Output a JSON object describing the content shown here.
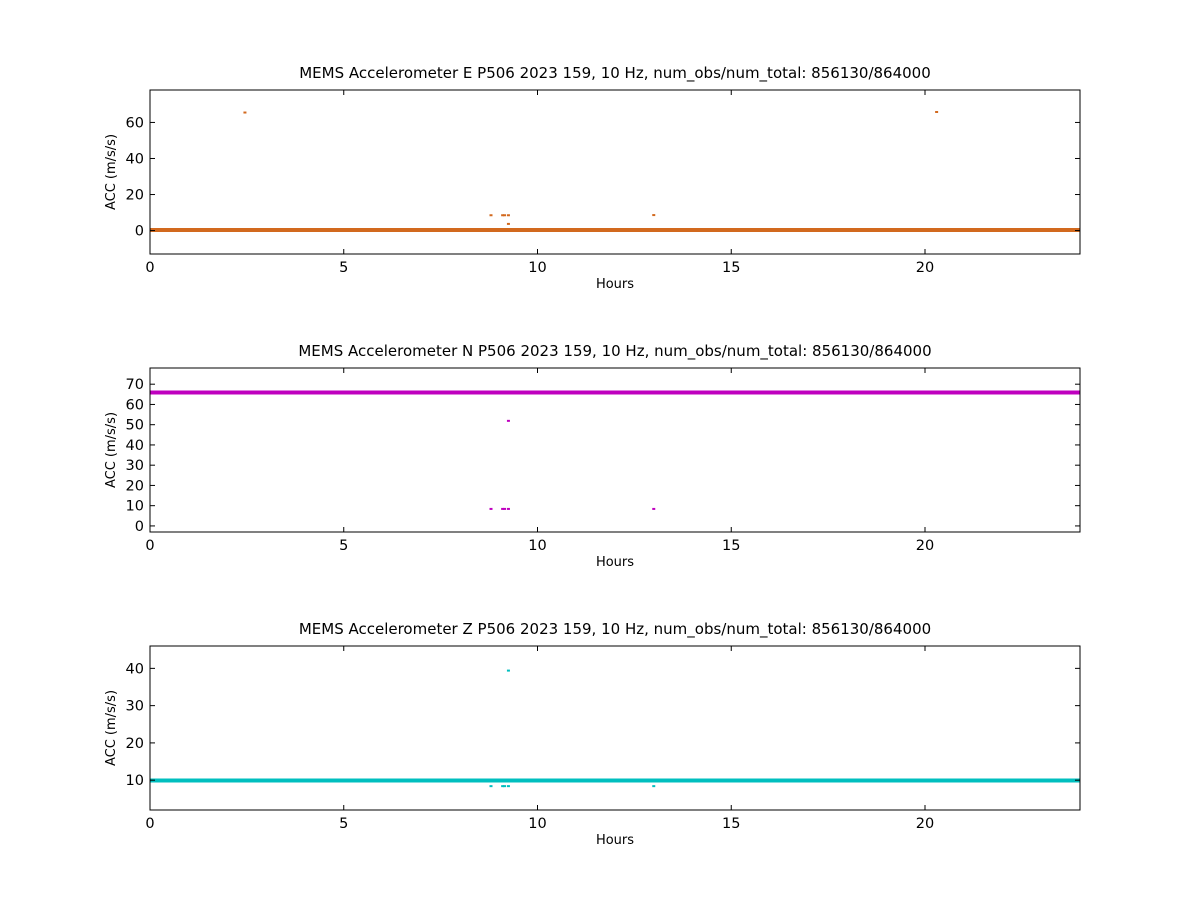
{
  "chart_data": [
    {
      "type": "scatter",
      "title": "MEMS Accelerometer E P506 2023 159, 10 Hz, num_obs/num_total: 856130/864000",
      "xlabel": "Hours",
      "ylabel": "ACC (m/s/s)",
      "xlim": [
        0,
        24
      ],
      "ylim": [
        -13,
        78
      ],
      "xticks": [
        0,
        5,
        10,
        15,
        20
      ],
      "yticks": [
        0,
        20,
        40,
        60
      ],
      "grid": false,
      "legend": "none",
      "color": "#d2691e",
      "baseline": {
        "y": 0.3,
        "x": [
          0,
          24
        ]
      },
      "series": [
        {
          "values": [
            [
              2.45,
              65.5
            ],
            [
              20.3,
              65.8
            ],
            [
              8.8,
              8.5
            ],
            [
              9.1,
              8.5
            ],
            [
              9.15,
              8.5
            ],
            [
              9.25,
              8.5
            ],
            [
              9.25,
              3.7
            ],
            [
              13.0,
              8.6
            ]
          ]
        }
      ]
    },
    {
      "type": "scatter",
      "title": "MEMS Accelerometer N P506 2023 159, 10 Hz, num_obs/num_total: 856130/864000",
      "xlabel": "Hours",
      "ylabel": "ACC (m/s/s)",
      "xlim": [
        0,
        24
      ],
      "ylim": [
        -3,
        78
      ],
      "xticks": [
        0,
        5,
        10,
        15,
        20
      ],
      "yticks": [
        0,
        10,
        20,
        30,
        40,
        50,
        60,
        70
      ],
      "grid": false,
      "legend": "none",
      "color": "#bf00bf",
      "baseline": {
        "y": 65.9,
        "x": [
          0,
          24
        ]
      },
      "series": [
        {
          "values": [
            [
              9.25,
              51.9
            ],
            [
              8.8,
              8.4
            ],
            [
              9.1,
              8.4
            ],
            [
              9.15,
              8.4
            ],
            [
              9.25,
              8.4
            ],
            [
              13.0,
              8.4
            ]
          ]
        }
      ]
    },
    {
      "type": "scatter",
      "title": "MEMS Accelerometer Z P506 2023 159, 10 Hz, num_obs/num_total: 856130/864000",
      "xlabel": "Hours",
      "ylabel": "ACC (m/s/s)",
      "xlim": [
        0,
        24
      ],
      "ylim": [
        2,
        46
      ],
      "xticks": [
        0,
        5,
        10,
        15,
        20
      ],
      "yticks": [
        10,
        20,
        30,
        40
      ],
      "grid": false,
      "legend": "none",
      "color": "#00bfbf",
      "baseline": {
        "y": 9.9,
        "x": [
          0,
          24
        ]
      },
      "series": [
        {
          "values": [
            [
              9.25,
              39.4
            ],
            [
              8.8,
              8.4
            ],
            [
              9.1,
              8.4
            ],
            [
              9.15,
              8.4
            ],
            [
              9.25,
              8.4
            ],
            [
              13.0,
              8.4
            ]
          ]
        }
      ]
    }
  ]
}
